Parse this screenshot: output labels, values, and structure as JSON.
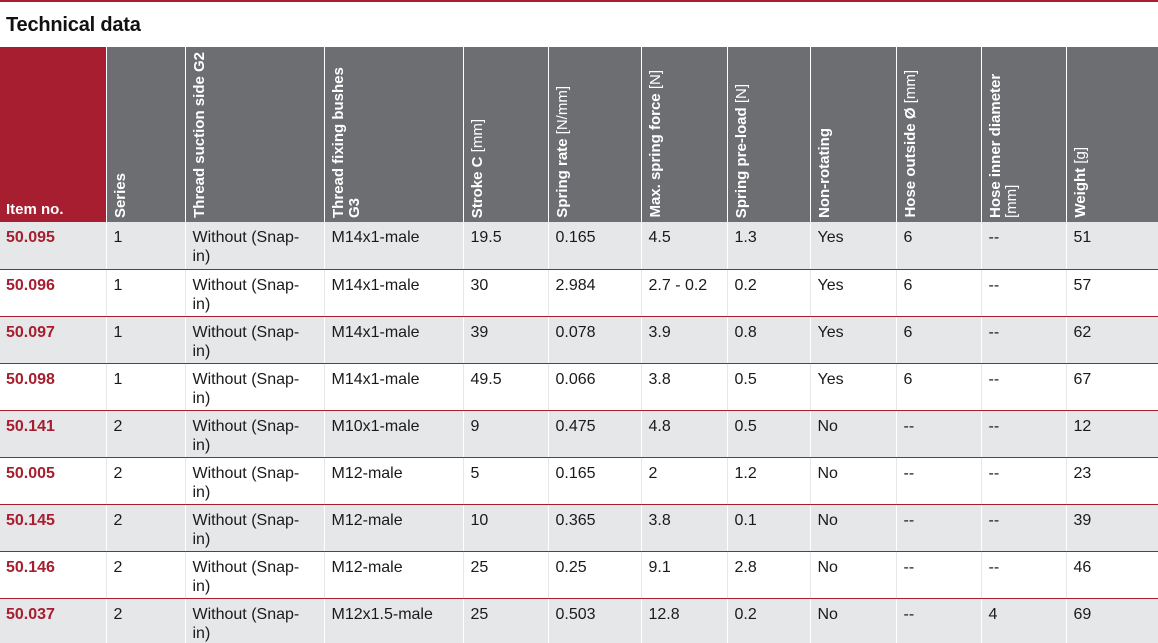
{
  "title": "Technical data",
  "headers": [
    {
      "main": "Item no.",
      "unit": ""
    },
    {
      "main": "Series",
      "unit": ""
    },
    {
      "main": "Thread suction side G2",
      "unit": ""
    },
    {
      "main": "Thread fixing bushes G3",
      "unit": ""
    },
    {
      "main": "Stroke C",
      "unit": "[mm]"
    },
    {
      "main": "Spring rate",
      "unit": "[N/mm]"
    },
    {
      "main": "Max. spring force",
      "unit": "[N]"
    },
    {
      "main": "Spring pre-load",
      "unit": "[N]"
    },
    {
      "main": "Non-rotating",
      "unit": ""
    },
    {
      "main": "Hose outside Ø",
      "unit": "[mm]"
    },
    {
      "main": "Hose inner diameter",
      "unit": "[mm]"
    },
    {
      "main": "Weight",
      "unit": "[g]"
    }
  ],
  "rows": [
    [
      "50.095",
      "1",
      "Without (Snap-in)",
      "M14x1-male",
      "19.5",
      "0.165",
      "4.5",
      "1.3",
      "Yes",
      "6",
      "--",
      "51"
    ],
    [
      "50.096",
      "1",
      "Without (Snap-in)",
      "M14x1-male",
      "30",
      "2.984",
      "2.7 - 0.2",
      "0.2",
      "Yes",
      "6",
      "--",
      "57"
    ],
    [
      "50.097",
      "1",
      "Without (Snap-in)",
      "M14x1-male",
      "39",
      "0.078",
      "3.9",
      "0.8",
      "Yes",
      "6",
      "--",
      "62"
    ],
    [
      "50.098",
      "1",
      "Without (Snap-in)",
      "M14x1-male",
      "49.5",
      "0.066",
      "3.8",
      "0.5",
      "Yes",
      "6",
      "--",
      "67"
    ],
    [
      "50.141",
      "2",
      "Without (Snap-in)",
      "M10x1-male",
      "9",
      "0.475",
      "4.8",
      "0.5",
      "No",
      "--",
      "--",
      "12"
    ],
    [
      "50.005",
      "2",
      "Without (Snap-in)",
      "M12-male",
      "5",
      "0.165",
      "2",
      "1.2",
      "No",
      "--",
      "--",
      "23"
    ],
    [
      "50.145",
      "2",
      "Without (Snap-in)",
      "M12-male",
      "10",
      "0.365",
      "3.8",
      "0.1",
      "No",
      "--",
      "--",
      "39"
    ],
    [
      "50.146",
      "2",
      "Without (Snap-in)",
      "M12-male",
      "25",
      "0.25",
      "9.1",
      "2.8",
      "No",
      "--",
      "--",
      "46"
    ],
    [
      "50.037",
      "2",
      "Without (Snap-in)",
      "M12x1.5-male",
      "25",
      "0.503",
      "12.8",
      "0.2",
      "No",
      "--",
      "4",
      "69"
    ]
  ],
  "colors": {
    "accent": "#a61e2f",
    "header_gray": "#6d6e71",
    "row_shade": "#e6e7e8"
  }
}
